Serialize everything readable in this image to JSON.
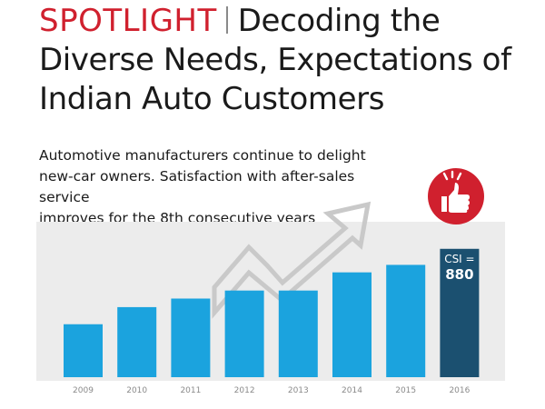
{
  "header": {
    "spotlight": "SPOTLIGHT",
    "title": "Decoding the Diverse Needs, Expectations of Indian Auto Customers"
  },
  "subtitle": "Automotive manufacturers continue to delight\nnew-car owners. Satisfaction with after-sales service\nimproves for the 8th consecutive years",
  "badge": {
    "icon": "thumbs-up-icon",
    "color": "#d0202e"
  },
  "chart_data": {
    "type": "bar",
    "categories": [
      "2009",
      "2010",
      "2011",
      "2012",
      "2013",
      "2014",
      "2015",
      "2016"
    ],
    "values": [
      739,
      771,
      787,
      802,
      802,
      836,
      850,
      880
    ],
    "highlight": {
      "index": 7,
      "label_line1": "CSI =",
      "label_line2": "880",
      "color": "#1b5070"
    },
    "bar_color": "#1ba3de",
    "panel_color": "#ececec",
    "arrow_color": "#c9c9c9",
    "ylim": [
      640,
      900
    ],
    "grid": false,
    "legend": "none"
  }
}
